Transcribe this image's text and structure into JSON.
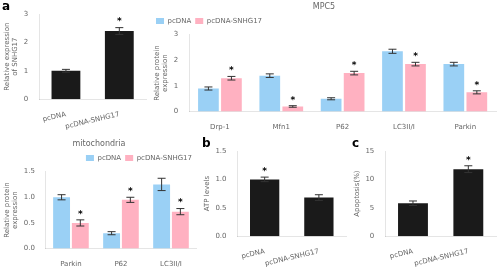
{
  "chart_data": [
    {
      "type": "bar",
      "categories": [
        "pcDNA",
        "pcDNA-SNHG17"
      ],
      "values": [
        1.0,
        2.4
      ],
      "errors": [
        0.05,
        0.12
      ],
      "color": "#1a1a1a",
      "y_label": "Relative expression\nof SNHG17",
      "ylim": [
        0,
        3
      ],
      "yticks": [
        0,
        1,
        2,
        3
      ],
      "grid": false,
      "annotations": [
        {
          "text": "a"
        },
        {
          "text": "*",
          "category": "pcDNA-SNHG17"
        }
      ]
    },
    {
      "type": "bar",
      "title": "MPC5",
      "categories": [
        "Drp-1",
        "Mfn1",
        "P62",
        "LC3II/I",
        "Parkin"
      ],
      "series": [
        {
          "name": "pcDNA",
          "values": [
            0.9,
            1.4,
            0.5,
            2.35,
            1.85
          ],
          "errors": [
            0.06,
            0.07,
            0.04,
            0.08,
            0.07
          ]
        },
        {
          "name": "pcDNA-SNHG17",
          "values": [
            1.3,
            0.2,
            1.5,
            1.85,
            0.75
          ],
          "errors": [
            0.07,
            0.03,
            0.07,
            0.07,
            0.06
          ]
        }
      ],
      "y_label": "Relative protein\nexpression",
      "ylim": [
        0,
        3
      ],
      "yticks": [
        0,
        1,
        2,
        3
      ],
      "grid": false,
      "legend": "upper left",
      "annotations": [
        {
          "text": "*",
          "series": "pcDNA-SNHG17",
          "category": "Drp-1"
        },
        {
          "text": "*",
          "series": "pcDNA-SNHG17",
          "category": "Mfn1"
        },
        {
          "text": "*",
          "series": "pcDNA-SNHG17",
          "category": "P62"
        },
        {
          "text": "*",
          "series": "pcDNA-SNHG17",
          "category": "LC3II/I"
        },
        {
          "text": "*",
          "series": "pcDNA-SNHG17",
          "category": "Parkin"
        }
      ]
    },
    {
      "type": "bar",
      "title": "mitochondria",
      "categories": [
        "Parkin",
        "P62",
        "LC3II/I"
      ],
      "series": [
        {
          "name": "pcDNA",
          "values": [
            1.0,
            0.3,
            1.25
          ],
          "errors": [
            0.05,
            0.03,
            0.12
          ]
        },
        {
          "name": "pcDNA-SNHG17",
          "values": [
            0.5,
            0.95,
            0.72
          ],
          "errors": [
            0.06,
            0.05,
            0.06
          ]
        }
      ],
      "y_label": "Relative protein\nexpression",
      "ylim": [
        0,
        1.5
      ],
      "yticks": [
        {
          "value": 0.0,
          "label": "0.0"
        },
        {
          "value": 0.5,
          "label": "0.5"
        },
        {
          "value": 1.0,
          "label": "1.0"
        },
        {
          "value": 1.5,
          "label": "1.5"
        }
      ],
      "grid": false,
      "legend": "upper right",
      "annotations": [
        {
          "text": "*",
          "series": "pcDNA-SNHG17",
          "category": "Parkin"
        },
        {
          "text": "*",
          "series": "pcDNA-SNHG17",
          "category": "P62"
        },
        {
          "text": "*",
          "series": "pcDNA-SNHG17",
          "category": "LC3II/I"
        }
      ]
    },
    {
      "type": "bar",
      "categories": [
        "pcDNA",
        "pcDNA-SNHG17"
      ],
      "values": [
        1.0,
        0.68
      ],
      "errors": [
        0.04,
        0.05
      ],
      "color": "#1a1a1a",
      "y_label": "ATP levels",
      "ylim": [
        0.0,
        1.5
      ],
      "yticks": [
        {
          "value": 0.0,
          "label": "0.0"
        },
        {
          "value": 0.5,
          "label": "0.5"
        },
        {
          "value": 1.0,
          "label": "1.0"
        },
        {
          "value": 1.5,
          "label": "1.5"
        }
      ],
      "grid": false,
      "annotations": [
        {
          "text": "b"
        },
        {
          "text": "*",
          "category": "pcDNA"
        }
      ]
    },
    {
      "type": "bar",
      "categories": [
        "pcDNA",
        "pcDNA-SNHG17"
      ],
      "values": [
        5.8,
        11.8
      ],
      "errors": [
        0.4,
        0.6
      ],
      "color": "#1a1a1a",
      "y_label": "Apoptosis(%)",
      "ylim": [
        0,
        15
      ],
      "yticks": [
        0,
        5,
        10,
        15
      ],
      "grid": false,
      "annotations": [
        {
          "text": "c"
        },
        {
          "text": "*",
          "category": "pcDNA-SNHG17"
        }
      ]
    }
  ]
}
